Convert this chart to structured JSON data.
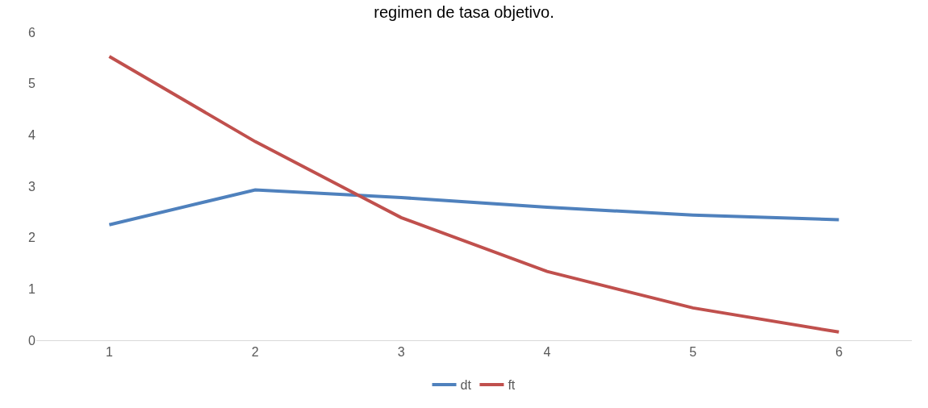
{
  "chart_data": {
    "type": "line",
    "title": "regimen de tasa objetivo.",
    "categories": [
      "1",
      "2",
      "3",
      "4",
      "5",
      "6"
    ],
    "series": [
      {
        "name": "dt",
        "color": "#4f81bd",
        "values": [
          2.25,
          2.93,
          2.78,
          2.59,
          2.44,
          2.35
        ]
      },
      {
        "name": "ft",
        "color": "#c0504d",
        "values": [
          5.53,
          3.87,
          2.39,
          1.34,
          0.63,
          0.16
        ]
      }
    ],
    "ylim": [
      0,
      6
    ],
    "yticks": [
      0,
      1,
      2,
      3,
      4,
      5,
      6
    ],
    "grid": false,
    "legend": "bottom",
    "marker": "none",
    "line_style": "solid"
  }
}
